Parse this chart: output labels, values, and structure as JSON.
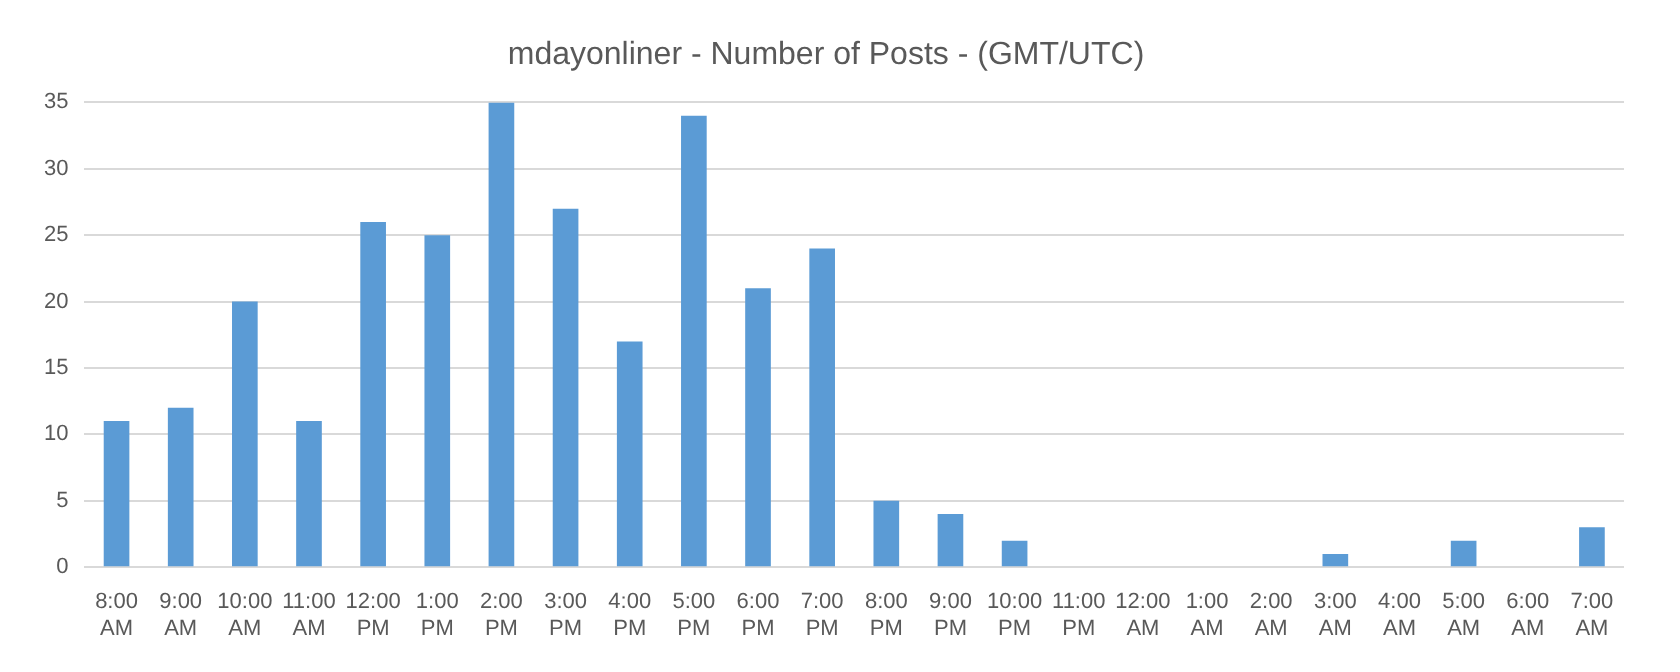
{
  "chart_data": {
    "type": "bar",
    "title": "mdayonliner - Number of Posts - (GMT/UTC)",
    "categories": [
      "8:00 AM",
      "9:00 AM",
      "10:00 AM",
      "11:00 AM",
      "12:00 PM",
      "1:00 PM",
      "2:00 PM",
      "3:00 PM",
      "4:00 PM",
      "5:00 PM",
      "6:00 PM",
      "7:00 PM",
      "8:00 PM",
      "9:00 PM",
      "10:00 PM",
      "11:00 PM",
      "12:00 AM",
      "1:00 AM",
      "2:00 AM",
      "3:00 AM",
      "4:00 AM",
      "5:00 AM",
      "6:00 AM",
      "7:00 AM"
    ],
    "values": [
      11,
      12,
      20,
      11,
      26,
      25,
      35,
      27,
      17,
      34,
      21,
      24,
      5,
      4,
      2,
      0,
      0,
      0,
      0,
      1,
      0,
      2,
      0,
      3
    ],
    "color": "#5b9bd5",
    "ylim": [
      0,
      35
    ],
    "yticks": [
      0,
      5,
      10,
      15,
      20,
      25,
      30,
      35
    ],
    "grid": "y",
    "legend": false
  }
}
